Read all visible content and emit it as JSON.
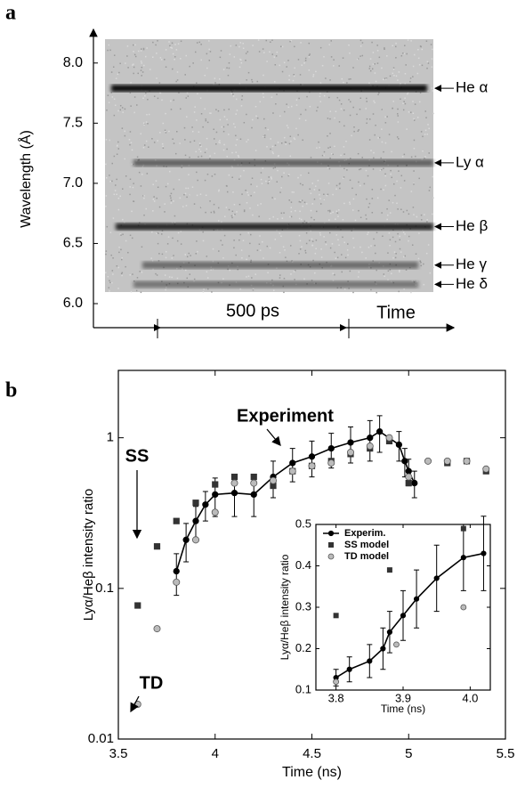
{
  "chart_data": [
    {
      "type": "streak",
      "panel_label": "a",
      "ylabel": "Wavelength (Å)",
      "ylim": [
        6.0,
        8.25
      ],
      "yticks": [
        {
          "value": 8.0,
          "label": "8.0"
        },
        {
          "value": 7.5,
          "label": "7.5"
        },
        {
          "value": 7.0,
          "label": "7.0"
        },
        {
          "value": 6.5,
          "label": "6.5"
        },
        {
          "value": 6.0,
          "label": "6.0"
        }
      ],
      "lines": {
        "names": [
          "He α",
          "Ly α",
          "He β",
          "He γ",
          "He δ"
        ],
        "values": [
          7.79,
          7.17,
          6.64,
          6.32,
          6.16
        ]
      },
      "span_label": "500 ps",
      "xlabel": "Time"
    },
    {
      "type": "scatter",
      "panel_label": "b",
      "xlabel": "Time (ns)",
      "ylabel": "Lyα/Heβ intensity ratio",
      "log_y": true,
      "xlim": [
        3.5,
        5.5
      ],
      "xticks": [
        3.5,
        4,
        4.5,
        5,
        5.5
      ],
      "ylim": [
        0.01,
        2.8
      ],
      "yticks": [
        0.01,
        0.1,
        1
      ],
      "series": [
        {
          "marker": "circle",
          "color": "#000000",
          "line": true,
          "x": [
            3.8,
            3.85,
            3.9,
            3.95,
            4.0,
            4.1,
            4.2,
            4.3,
            4.4,
            4.5,
            4.6,
            4.7,
            4.8,
            4.85,
            4.95,
            4.98,
            5.0,
            5.03
          ],
          "values": [
            0.13,
            0.21,
            0.28,
            0.36,
            0.42,
            0.43,
            0.42,
            0.55,
            0.68,
            0.75,
            0.85,
            0.93,
            1.0,
            1.1,
            0.9,
            0.7,
            0.6,
            0.5
          ],
          "errors": [
            0.04,
            0.06,
            0.07,
            0.08,
            0.12,
            0.13,
            0.12,
            0.15,
            0.17,
            0.2,
            0.22,
            0.25,
            0.3,
            0.3,
            0.2,
            0.15,
            0.12,
            0.1
          ]
        },
        {
          "marker": "square",
          "color": "#333333",
          "x": [
            3.6,
            3.7,
            3.8,
            3.9,
            4.0,
            4.1,
            4.2,
            4.3,
            4.4,
            4.5,
            4.6,
            4.7,
            4.8,
            4.9,
            5.0,
            5.2,
            5.3,
            5.4
          ],
          "values": [
            0.077,
            0.19,
            0.28,
            0.37,
            0.49,
            0.55,
            0.55,
            0.48,
            0.6,
            0.65,
            0.7,
            0.78,
            0.85,
            0.95,
            0.5,
            0.68,
            0.7,
            0.6
          ]
        },
        {
          "marker": "circle-open",
          "color": "#bbbbbb",
          "x": [
            3.6,
            3.7,
            3.8,
            3.9,
            4.0,
            4.1,
            4.2,
            4.3,
            4.4,
            4.5,
            4.6,
            4.7,
            4.8,
            4.9,
            5.0,
            5.1,
            5.2,
            5.3,
            5.4
          ],
          "values": [
            0.017,
            0.054,
            0.11,
            0.21,
            0.32,
            0.5,
            0.5,
            0.52,
            0.6,
            0.65,
            0.68,
            0.8,
            0.88,
            1.0,
            0.55,
            0.7,
            0.7,
            0.7,
            0.62
          ]
        }
      ],
      "annotations": [
        "Experiment",
        "SS",
        "TD"
      ]
    },
    {
      "type": "scatter",
      "xlabel": "Time (ns)",
      "ylabel": "Lyα/Heβ intensity ratio",
      "xlim": [
        3.77,
        4.03
      ],
      "xticks": [
        3.8,
        3.9,
        {
          "value": 4.0,
          "label": "4.0"
        }
      ],
      "ylim": [
        0.1,
        0.5
      ],
      "yticks": [
        0.1,
        0.2,
        0.3,
        0.4,
        0.5
      ],
      "series": [
        {
          "name": "Experim.",
          "marker": "circle",
          "color": "#000000",
          "line": true,
          "x": [
            3.8,
            3.82,
            3.85,
            3.87,
            3.88,
            3.9,
            3.92,
            3.95,
            3.99,
            4.02
          ],
          "values": [
            0.13,
            0.15,
            0.17,
            0.2,
            0.24,
            0.28,
            0.32,
            0.37,
            0.42,
            0.43
          ],
          "errors": [
            0.02,
            0.03,
            0.04,
            0.05,
            0.05,
            0.06,
            0.07,
            0.08,
            0.08,
            0.09
          ]
        },
        {
          "name": "SS model",
          "marker": "square",
          "color": "#333333",
          "x": [
            3.8,
            3.88,
            3.99
          ],
          "values": [
            0.28,
            0.39,
            0.49
          ]
        },
        {
          "name": "TD model",
          "marker": "circle-open",
          "color": "#bbbbbb",
          "x": [
            3.8,
            3.89,
            3.99
          ],
          "values": [
            0.12,
            0.21,
            0.3
          ]
        }
      ]
    }
  ]
}
